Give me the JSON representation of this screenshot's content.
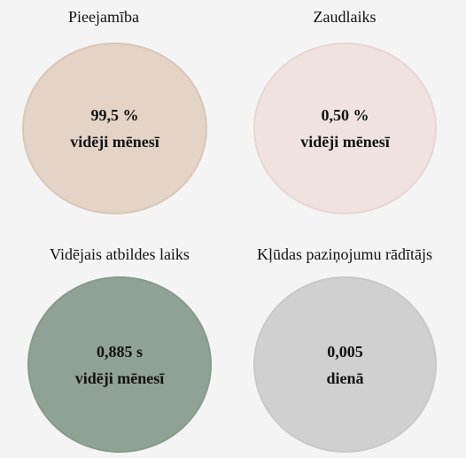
{
  "chart_data": {
    "type": "kpi-circles",
    "items": [
      {
        "title": "Pieejamība",
        "value": "99,5 %",
        "subtitle": "vidēji mēnesī",
        "color": "#e3d4c7",
        "border": "#d9c6b6"
      },
      {
        "title": "Zaudlaiks",
        "value": "0,50 %",
        "subtitle": "vidēji mēnesī",
        "color": "#efe2e1",
        "border": "#e6d6d4"
      },
      {
        "title": "Vidējais atbildes laiks",
        "value": "0,885 s",
        "subtitle": "vidēji mēnesī",
        "color": "#8fa295",
        "border": "#869a8c"
      },
      {
        "title": "Kļūdas paziņojumu rādītājs",
        "value": "0,005",
        "subtitle": "dienā",
        "color": "#d0d0d0",
        "border": "#c8c8c8"
      }
    ]
  }
}
